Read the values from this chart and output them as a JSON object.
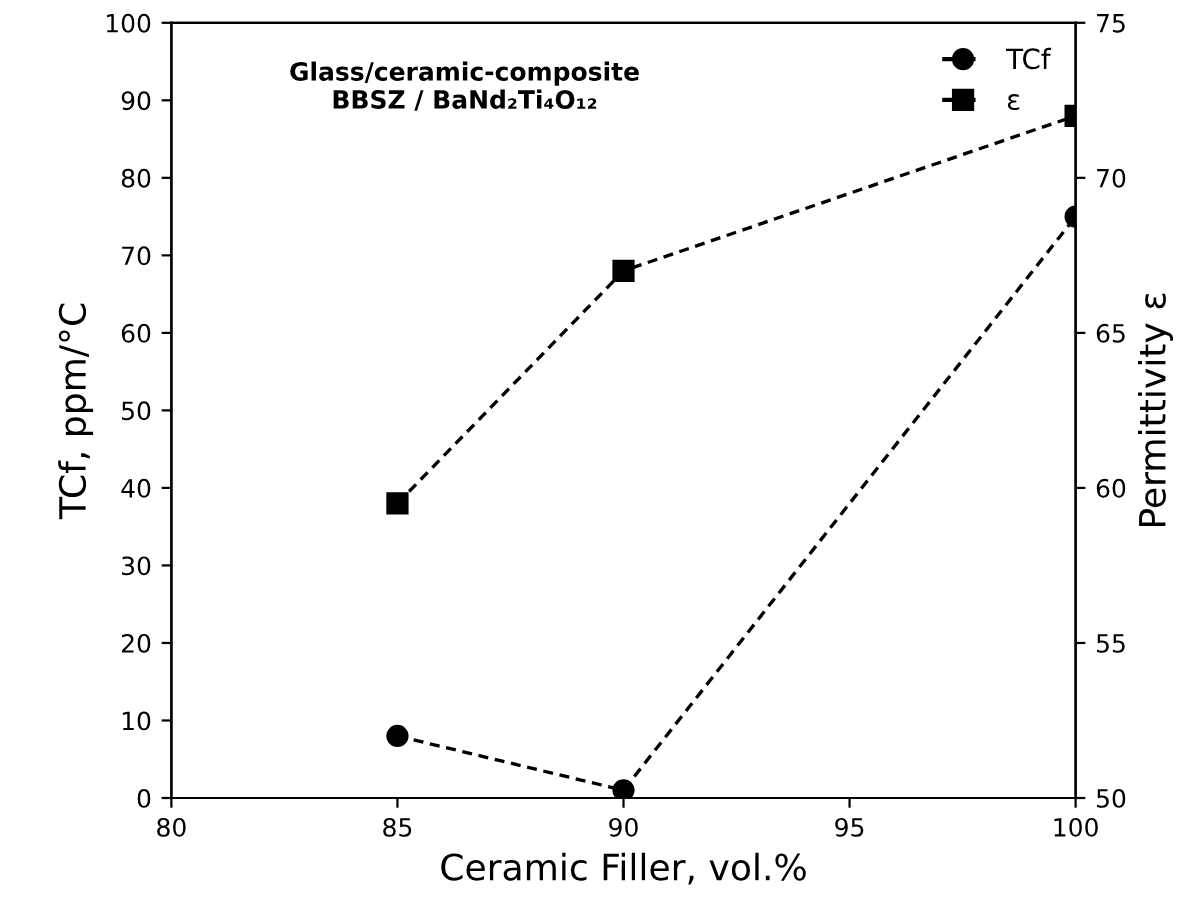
{
  "chart_data": {
    "type": "line",
    "xlabel": "Ceramic Filler, vol.%",
    "ylabel": "TCf, ppm/°C",
    "y2label": "Permittivity ε",
    "x": [
      85,
      90,
      100
    ],
    "series": [
      {
        "name": "TCf",
        "color": "#000000",
        "values": [
          8,
          1,
          75
        ],
        "marker": "circle"
      },
      {
        "name": "ε",
        "color": "#000000",
        "values": [
          59.5,
          67,
          72
        ],
        "axis": "y2",
        "marker": "square"
      }
    ],
    "line_style": "dashed",
    "grid": false,
    "legend": "top right",
    "xlim": [
      80,
      100
    ],
    "xticks": [
      80,
      85,
      90,
      95,
      100
    ],
    "ylim": [
      0,
      100
    ],
    "yticks": [
      0,
      10,
      20,
      30,
      40,
      50,
      60,
      70,
      80,
      90,
      100
    ],
    "y2lim": [
      50,
      75
    ],
    "y2ticks": [
      50,
      55,
      60,
      65,
      70,
      75
    ],
    "annotations": [
      "Glass/ceramic-composite\nBBSZ / BaNd₂Ti₄O₁₂"
    ]
  }
}
